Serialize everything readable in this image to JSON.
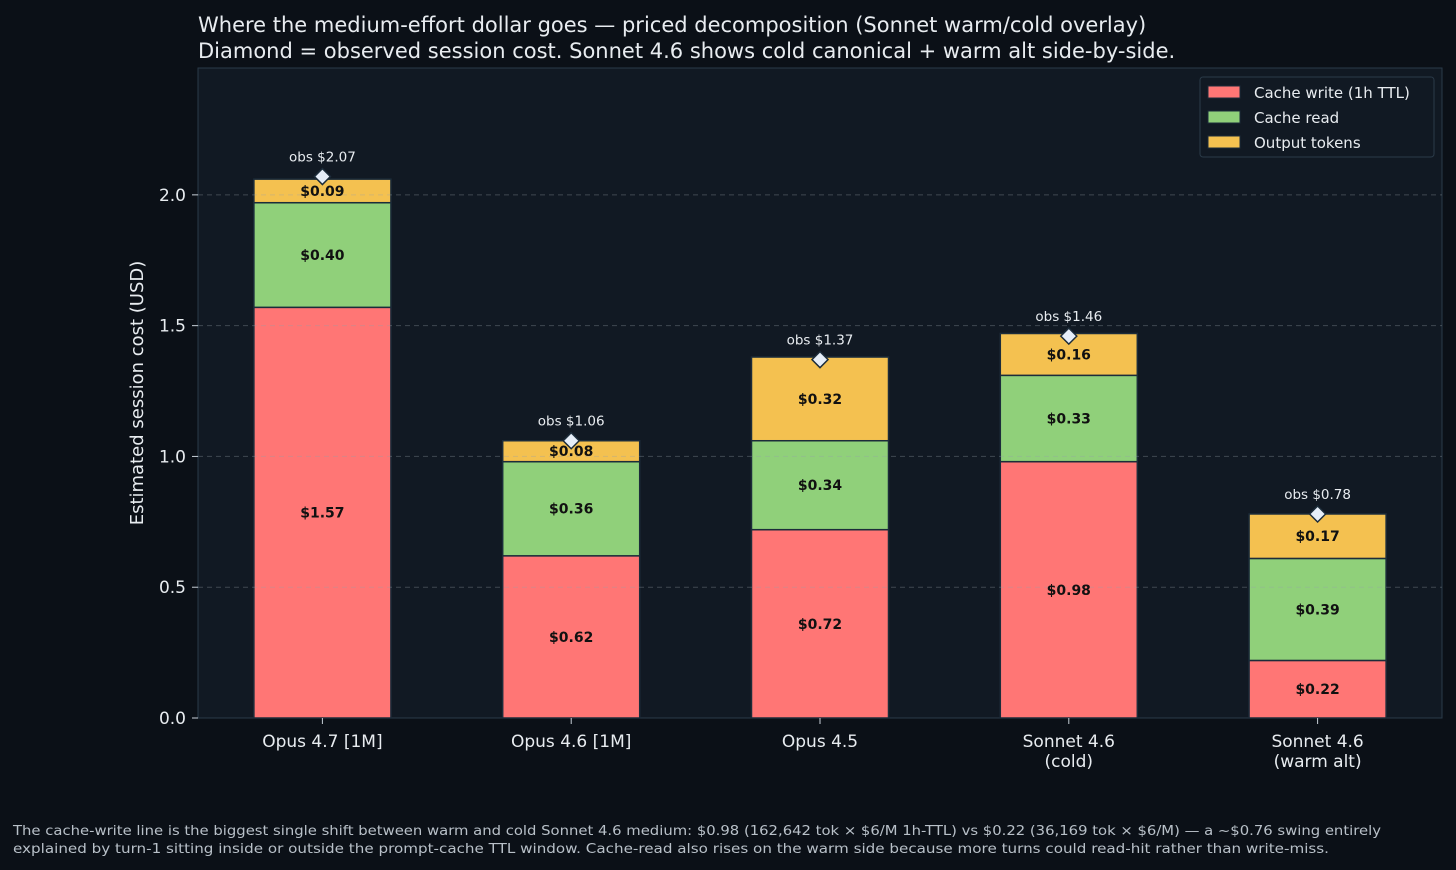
{
  "chart_data": {
    "type": "bar",
    "stacked": true,
    "title": "Where the medium-effort dollar goes — priced decomposition (Sonnet warm/cold overlay)",
    "subtitle": "Diamond = observed session cost. Sonnet 4.6 shows cold canonical + warm alt side-by-side.",
    "xlabel": "",
    "ylabel": "Estimated session cost (USD)",
    "ylim": [
      0,
      2.485
    ],
    "yticks": [
      "0.0",
      "0.5",
      "1.0",
      "1.5",
      "2.0"
    ],
    "ytick_values": [
      0,
      0.5,
      1.0,
      1.5,
      2.0
    ],
    "grid": true,
    "legend_position": "top-right",
    "categories": [
      [
        "Opus 4.7 [1M]"
      ],
      [
        "Opus 4.6 [1M]"
      ],
      [
        "Opus 4.5"
      ],
      [
        "Sonnet 4.6",
        "(cold)"
      ],
      [
        "Sonnet 4.6",
        "(warm alt)"
      ]
    ],
    "series": [
      {
        "name": "Cache write (1h TTL)",
        "color": "#ff7675",
        "values": [
          1.57,
          0.62,
          0.72,
          0.98,
          0.22
        ],
        "labels": [
          "$1.57",
          "$0.62",
          "$0.72",
          "$0.98",
          "$0.22"
        ]
      },
      {
        "name": "Cache read",
        "color": "#90d07a",
        "values": [
          0.4,
          0.36,
          0.34,
          0.33,
          0.39
        ],
        "labels": [
          "$0.40",
          "$0.36",
          "$0.34",
          "$0.33",
          "$0.39"
        ]
      },
      {
        "name": "Output tokens",
        "color": "#f4c150",
        "values": [
          0.09,
          0.08,
          0.32,
          0.16,
          0.17
        ],
        "labels": [
          "$0.09",
          "$0.08",
          "$0.32",
          "$0.16",
          "$0.17"
        ]
      }
    ],
    "observed": {
      "values": [
        2.07,
        1.06,
        1.37,
        1.46,
        0.78
      ],
      "labels": [
        "obs $2.07",
        "obs $1.06",
        "obs $1.37",
        "obs $1.46",
        "obs $0.78"
      ]
    }
  },
  "footnote": [
    "The cache-write line is the biggest single shift between warm and cold Sonnet 4.6 medium: $0.98 (162,642 tok × $6/M 1h-TTL) vs $0.22 (36,169 tok × $6/M) — a ~$0.76 swing entirely",
    "explained by turn-1 sitting inside or outside the prompt-cache TTL window. Cache-read also rises on the warm side because more turns could read-hit rather than write-miss."
  ]
}
